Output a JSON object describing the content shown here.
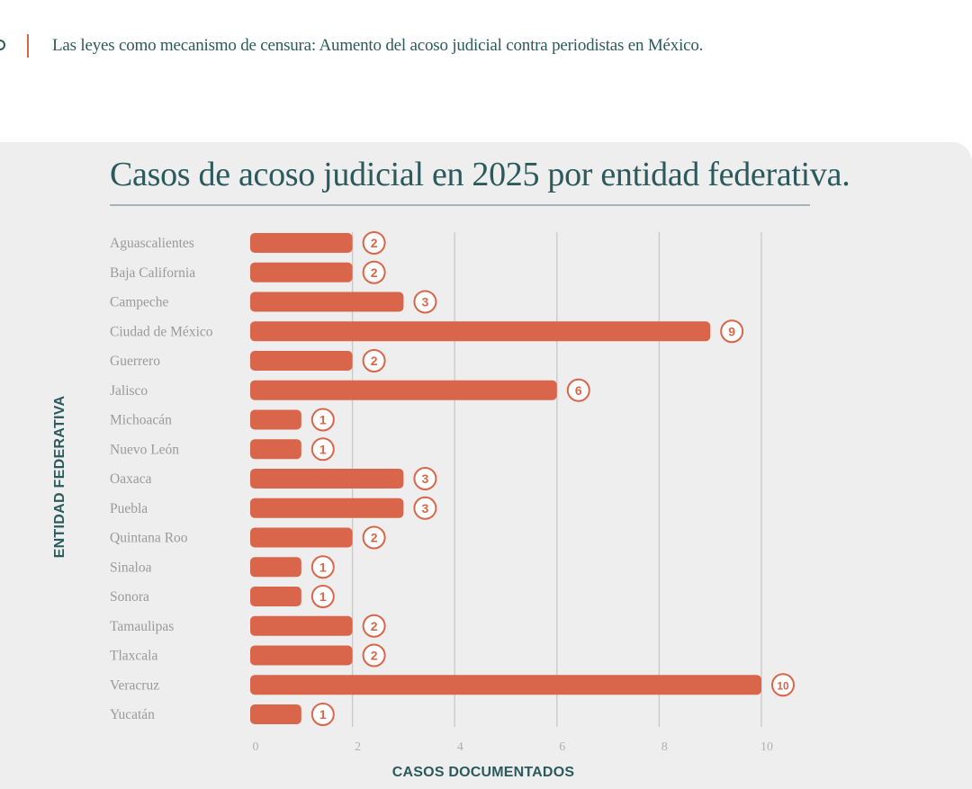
{
  "header": {
    "text": "Las leyes como mecanismo de censura: Aumento del acoso judicial contra periodistas en México."
  },
  "colors": {
    "accent": "#d9664a",
    "title": "#2b5a5c",
    "panel": "#eeeeee",
    "label": "#9a9a9a",
    "grid": "#c8c8c8"
  },
  "chart_data": {
    "type": "bar",
    "orientation": "horizontal",
    "title": "Casos de acoso judicial en 2025 por entidad federativa.",
    "xlabel": "CASOS DOCUMENTADOS",
    "ylabel": "ENTIDAD FEDERATIVA",
    "xlim": [
      0,
      10
    ],
    "xticks": [
      0,
      2,
      4,
      6,
      8,
      10
    ],
    "grid": true,
    "categories": [
      "Aguascalientes",
      "Baja California",
      "Campeche",
      "Ciudad de México",
      "Guerrero",
      "Jalisco",
      "Michoacán",
      "Nuevo León",
      "Oaxaca",
      "Puebla",
      "Quintana Roo",
      "Sinaloa",
      "Sonora",
      "Tamaulipas",
      "Tlaxcala",
      "Veracruz",
      "Yucatán"
    ],
    "values": [
      2,
      2,
      3,
      9,
      2,
      6,
      1,
      1,
      3,
      3,
      2,
      1,
      1,
      2,
      2,
      10,
      1
    ]
  }
}
